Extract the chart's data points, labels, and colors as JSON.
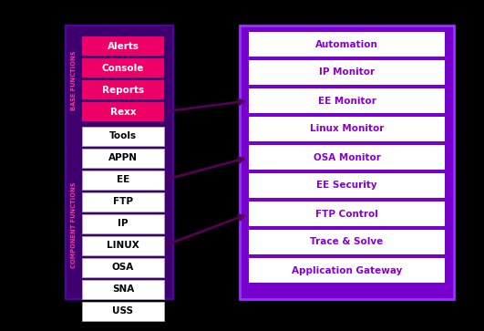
{
  "background_color": "#000000",
  "left_panel_bg": "#3D006E",
  "left_panel_border": "#5500AA",
  "right_panel_bg": "#7700CC",
  "right_panel_border": "#9933FF",
  "base_items": [
    "Alerts",
    "Console",
    "Reports",
    "Rexx"
  ],
  "component_items": [
    "Tools",
    "APPN",
    "EE",
    "FTP",
    "IP",
    "LINUX",
    "OSA",
    "SNA",
    "USS"
  ],
  "base_item_color": "#EE0066",
  "base_item_text_color": "#FFFFFF",
  "component_item_color": "#FFFFFF",
  "component_item_text_color": "#000000",
  "right_items": [
    "Automation",
    "IP Monitor",
    "EE Monitor",
    "Linux Monitor",
    "OSA Monitor",
    "EE Security",
    "FTP Control",
    "Trace & Solve",
    "Application Gateway"
  ],
  "right_item_color": "#FFFFFF",
  "right_item_text_color": "#8800CC",
  "label_base_functions": "BASE FUNCTIONS",
  "label_component_functions": "COMPONENT FUNCTIONS",
  "label_color": "#FF33AA",
  "arrow_color": "#550055",
  "fig_w": 5.31,
  "fig_h": 3.63,
  "dpi": 100
}
